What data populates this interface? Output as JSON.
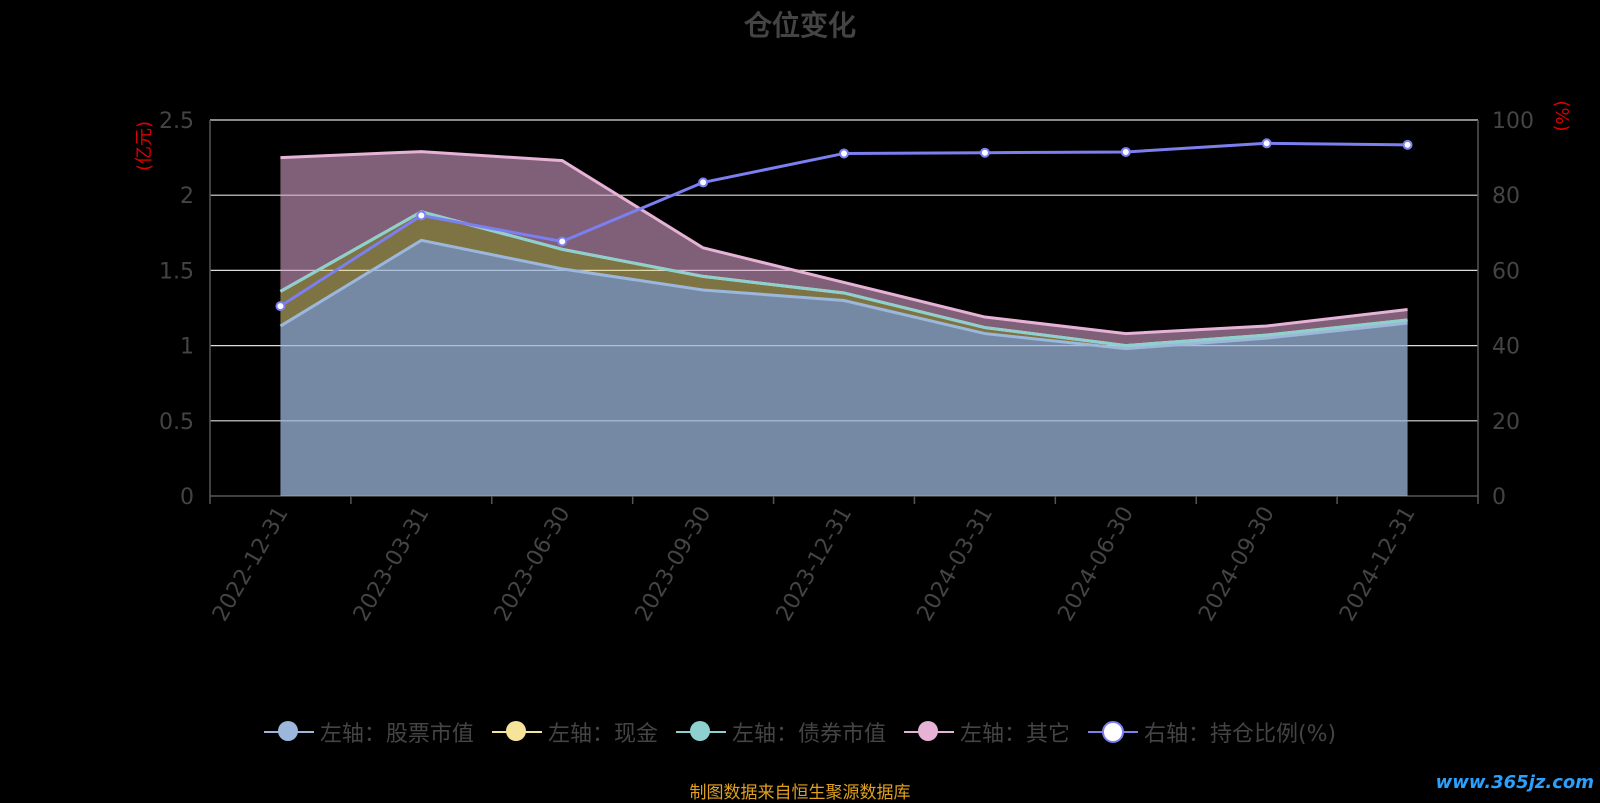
{
  "chart_data": {
    "type": "area",
    "title": "仓位变化",
    "categories": [
      "2022-12-31",
      "2023-03-31",
      "2023-06-30",
      "2023-09-30",
      "2023-12-31",
      "2024-03-31",
      "2024-06-30",
      "2024-09-30",
      "2024-12-31"
    ],
    "y_left": {
      "label": "(亿元)",
      "range": [
        0,
        2.5
      ],
      "ticks": [
        "0",
        "0.5",
        "1",
        "1.5",
        "2",
        "2.5"
      ],
      "tick_values": [
        0,
        0.5,
        1,
        1.5,
        2,
        2.5
      ]
    },
    "y_right": {
      "label": "(%)",
      "range": [
        0,
        100
      ],
      "ticks": [
        "0",
        "20",
        "40",
        "60",
        "80",
        "100"
      ],
      "tick_values": [
        0,
        20,
        40,
        60,
        80,
        100
      ]
    },
    "stacked": true,
    "series": [
      {
        "name": "左轴：股票市值",
        "axis": "left",
        "color": "#9cb7dc",
        "values": [
          1.13,
          1.7,
          1.51,
          1.37,
          1.3,
          1.08,
          0.98,
          1.05,
          1.15
        ]
      },
      {
        "name": "左轴：现金",
        "axis": "left",
        "color": "#f7e49b",
        "values": [
          0.23,
          0.19,
          0.13,
          0.09,
          0.05,
          0.04,
          0.02,
          0.02,
          0.02
        ]
      },
      {
        "name": "左轴：债券市值",
        "axis": "left",
        "color": "#8ed0d0",
        "values": [
          0,
          0,
          0,
          0,
          0,
          0,
          0,
          0,
          0
        ]
      },
      {
        "name": "左轴：其它",
        "axis": "left",
        "color": "#e6b3d6",
        "values": [
          0.89,
          0.4,
          0.59,
          0.19,
          0.07,
          0.07,
          0.08,
          0.06,
          0.07
        ]
      },
      {
        "name": "右轴：持仓比例(%)",
        "axis": "right",
        "type": "line",
        "color": "#7b7ff0",
        "values": [
          50.5,
          74.6,
          67.7,
          83.4,
          91.1,
          91.3,
          91.5,
          93.8,
          93.4
        ]
      }
    ],
    "grid": true,
    "legend_position": "bottom"
  },
  "source_note": "制图数据来自恒生聚源数据库",
  "watermark": "www.365jz.com"
}
